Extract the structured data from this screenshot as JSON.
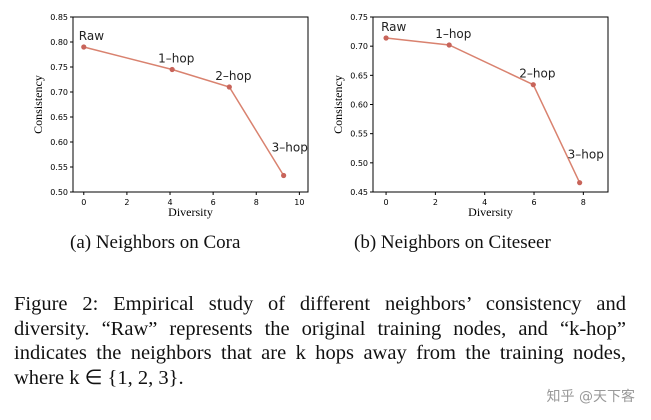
{
  "chart_data": [
    {
      "type": "line",
      "xlabel": "Diversity",
      "ylabel": "Consistency",
      "xlim": [
        -0.5,
        10.4
      ],
      "ylim": [
        0.5,
        0.85
      ],
      "xticks": [
        0,
        2,
        4,
        6,
        8,
        10
      ],
      "yticks": [
        "0.50",
        "0.55",
        "0.60",
        "0.65",
        "0.70",
        "0.75",
        "0.80",
        "0.85"
      ],
      "grid": false,
      "color": "#d9826f",
      "points": [
        {
          "label": "Raw",
          "x": 0,
          "y": 0.79
        },
        {
          "label": "1–hop",
          "x": 4.1,
          "y": 0.745
        },
        {
          "label": "2–hop",
          "x": 6.75,
          "y": 0.71
        },
        {
          "label": "3–hop",
          "x": 9.27,
          "y": 0.533
        }
      ],
      "subcaption": "(a)  Neighbors on Cora"
    },
    {
      "type": "line",
      "xlabel": "Diversity",
      "ylabel": "Consistency",
      "xlim": [
        -0.53,
        9.0
      ],
      "ylim": [
        0.45,
        0.75
      ],
      "xticks": [
        0,
        2,
        4,
        6,
        8
      ],
      "yticks": [
        "0.45",
        "0.50",
        "0.55",
        "0.60",
        "0.65",
        "0.70",
        "0.75"
      ],
      "grid": false,
      "color": "#d9826f",
      "points": [
        {
          "label": "Raw",
          "x": 0,
          "y": 0.714
        },
        {
          "label": "1–hop",
          "x": 2.56,
          "y": 0.702
        },
        {
          "label": "2–hop",
          "x": 5.97,
          "y": 0.634
        },
        {
          "label": "3–hop",
          "x": 7.85,
          "y": 0.466
        }
      ],
      "subcaption": "(b)  Neighbors on Citeseer"
    }
  ],
  "caption": "Figure 2: Empirical study of different neighbors’ consistency and diversity. “Raw” represents the original training nodes, and “k-hop” indicates the neighbors that are k hops away from the training nodes, where k ∈ {1, 2, 3}.",
  "watermark": "知乎 @天下客"
}
